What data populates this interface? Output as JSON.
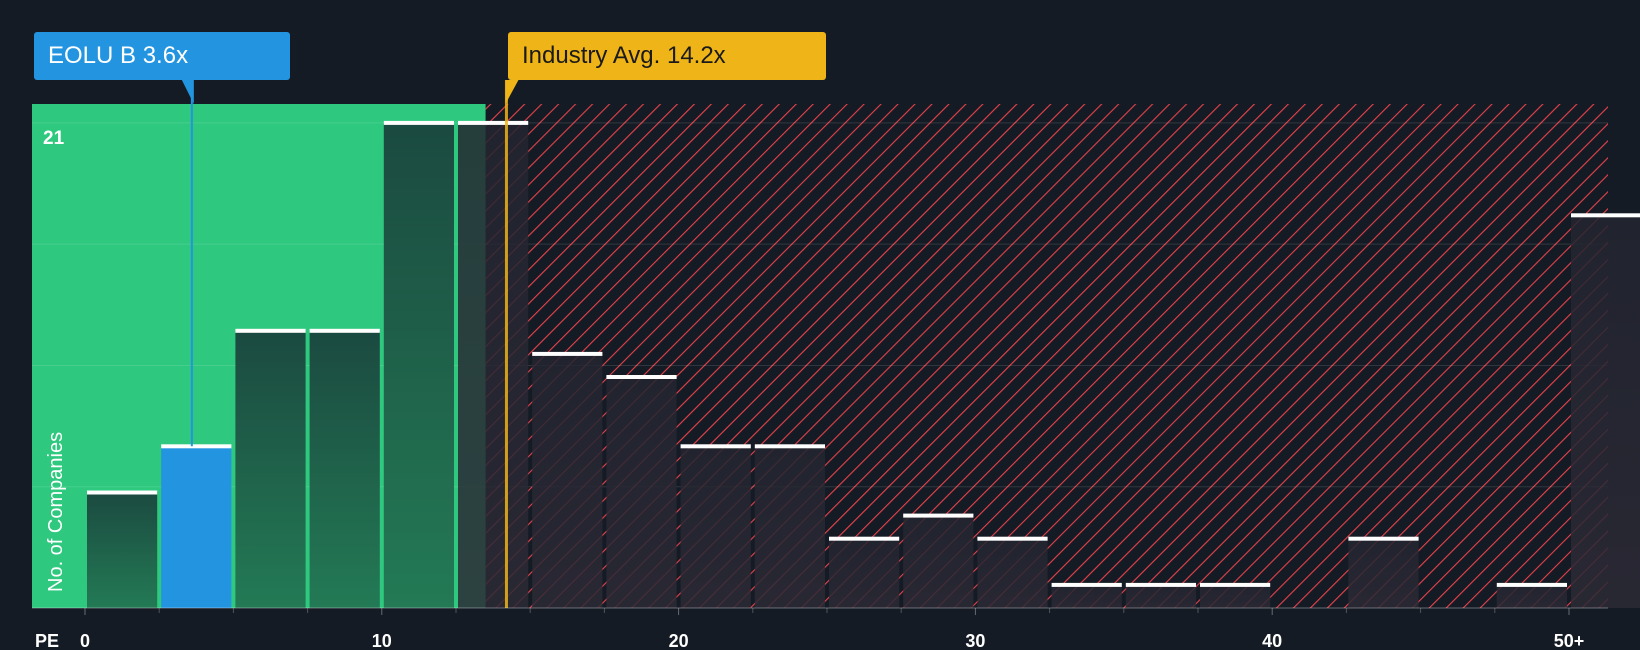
{
  "company_label": "EOLU B 3.6x",
  "industry_label": "Industry Avg. 14.2x",
  "colors": {
    "background": "#151b24",
    "fair_zone": "#2ec87f",
    "overvalued_hatch": "#e8424c",
    "company_bar": "#2394e0",
    "industry_line": "#efb417"
  },
  "chart_data": {
    "type": "bar",
    "title": "",
    "xlabel": "PE",
    "ylabel": "No. of Companies",
    "xlim": [
      0,
      51.5
    ],
    "ylim": [
      0,
      21.7
    ],
    "x_ticks": [
      {
        "value": 0,
        "label": "0"
      },
      {
        "value": 10,
        "label": "10"
      },
      {
        "value": 20,
        "label": "20"
      },
      {
        "value": 30,
        "label": "30"
      },
      {
        "value": 40,
        "label": "40"
      },
      {
        "value": 50,
        "label": "50+"
      }
    ],
    "y_ticks": [
      {
        "value": 21,
        "label": "21"
      }
    ],
    "gridlines_y": [
      0,
      5.25,
      10.5,
      15.75,
      21
    ],
    "bin_width": 2.5,
    "bins": [
      {
        "start": 0,
        "count": 5
      },
      {
        "start": 2.5,
        "count": 7
      },
      {
        "start": 5,
        "count": 12
      },
      {
        "start": 7.5,
        "count": 12
      },
      {
        "start": 10,
        "count": 21
      },
      {
        "start": 12.5,
        "count": 21
      },
      {
        "start": 15,
        "count": 11
      },
      {
        "start": 17.5,
        "count": 10
      },
      {
        "start": 20,
        "count": 7
      },
      {
        "start": 22.5,
        "count": 7
      },
      {
        "start": 25,
        "count": 3
      },
      {
        "start": 27.5,
        "count": 4
      },
      {
        "start": 30,
        "count": 3
      },
      {
        "start": 32.5,
        "count": 1
      },
      {
        "start": 35,
        "count": 1
      },
      {
        "start": 37.5,
        "count": 1
      },
      {
        "start": 40,
        "count": 0
      },
      {
        "start": 42.5,
        "count": 3
      },
      {
        "start": 45,
        "count": 0
      },
      {
        "start": 47.5,
        "count": 1
      },
      {
        "start": 50,
        "count": 17
      }
    ],
    "company_value": 3.6,
    "industry_average": 14.2,
    "fair_value_upper": 13.5
  }
}
